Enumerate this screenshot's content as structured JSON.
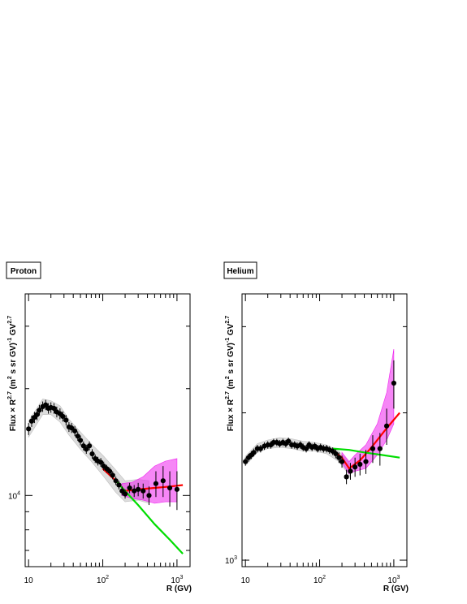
{
  "chart_data": [
    {
      "type": "scatter",
      "panel_label": "Proton",
      "ylabel": {
        "base": "Flux",
        "times": "×",
        "r": "R",
        "r_exp": "2.7",
        "mid": " (m",
        "m_exp": "2",
        "rest": " s sr GV)",
        "inv_exp": "-1",
        "gv": " GV",
        "gv_exp": "2.7"
      },
      "xlabel": "R (GV)",
      "xscale": "log",
      "yscale": "log",
      "xlim": [
        9,
        1500
      ],
      "ylim": [
        6300,
        37000
      ],
      "x_ticks": [
        {
          "base": "10",
          "exp": "",
          "value": 10
        },
        {
          "base": "10",
          "exp": "2",
          "value": 100
        },
        {
          "base": "10",
          "exp": "3",
          "value": 1000
        }
      ],
      "y_ticks": [
        {
          "base": "10",
          "exp": "4",
          "value": 10000
        }
      ],
      "series": [
        {
          "kind": "points",
          "x": [
            10,
            11,
            12,
            13,
            14,
            15.5,
            17,
            18.5,
            20,
            22,
            24,
            26.5,
            29,
            32,
            35,
            38,
            42,
            46,
            50,
            55,
            60,
            66,
            72,
            79,
            86,
            94,
            103,
            113,
            124,
            136,
            150,
            165,
            182,
            200,
            230,
            265,
            300,
            350,
            420,
            520,
            650,
            800,
            1000
          ],
          "y": [
            15400,
            16200,
            16600,
            16900,
            17400,
            17800,
            18000,
            17600,
            17700,
            17600,
            17200,
            17000,
            16700,
            16300,
            15600,
            15500,
            15200,
            14700,
            14300,
            13800,
            13500,
            13800,
            13100,
            12700,
            12500,
            12400,
            12100,
            11900,
            11700,
            11400,
            11000,
            10700,
            10300,
            10100,
            10500,
            10300,
            10400,
            10300,
            10000,
            10800,
            11000,
            10500,
            10400
          ],
          "err": [
            600,
            600,
            600,
            600,
            600,
            600,
            600,
            600,
            600,
            600,
            600,
            600,
            550,
            550,
            500,
            500,
            500,
            450,
            450,
            400,
            400,
            400,
            400,
            350,
            350,
            350,
            350,
            300,
            300,
            300,
            300,
            300,
            300,
            300,
            350,
            400,
            450,
            500,
            600,
            900,
            1100,
            1200,
            1300
          ]
        },
        {
          "kind": "fit",
          "color": "#ff0000",
          "x": [
            100,
            150,
            200,
            300,
            500,
            800,
            1200
          ],
          "y": [
            11900,
            11000,
            10300,
            10400,
            10500,
            10600,
            10700
          ]
        },
        {
          "kind": "fit",
          "color": "#00dd00",
          "x": [
            150,
            200,
            300,
            500,
            800,
            1200
          ],
          "y": [
            11000,
            10300,
            9400,
            8300,
            7500,
            6850
          ]
        }
      ],
      "bands": [
        {
          "color": "#bfbfbf",
          "x": [
            10,
            15.5,
            20,
            26.5,
            35,
            50,
            72,
            103,
            150,
            200,
            300,
            420
          ],
          "lo": [
            14600,
            16900,
            16900,
            16100,
            14800,
            13500,
            12400,
            11300,
            10200,
            9600,
            9700,
            9500
          ],
          "hi": [
            16200,
            18700,
            18500,
            17900,
            16400,
            15100,
            13900,
            12900,
            11800,
            11000,
            11100,
            11000
          ]
        },
        {
          "color": "#ee22ee",
          "x": [
            180,
            250,
            350,
            500,
            700,
            1000
          ],
          "lo": [
            10000,
            9800,
            9700,
            9500,
            9600,
            9600
          ],
          "hi": [
            10800,
            10900,
            11300,
            12100,
            12500,
            12700
          ]
        }
      ]
    },
    {
      "type": "scatter",
      "panel_label": "Helium",
      "ylabel": {
        "base": "Flux",
        "times": "×",
        "r": "R",
        "r_exp": "2.7",
        "mid": " (m",
        "m_exp": "2",
        "rest": " s sr GV)",
        "inv_exp": "-1",
        "gv": " GV",
        "gv_exp": "2.7"
      },
      "xlabel": "R (GV)",
      "xscale": "log",
      "yscale": "log",
      "xlim": [
        9,
        1500
      ],
      "ylim": [
        970,
        3500
      ],
      "x_ticks": [
        {
          "base": "10",
          "exp": "",
          "value": 10
        },
        {
          "base": "10",
          "exp": "2",
          "value": 100
        },
        {
          "base": "10",
          "exp": "3",
          "value": 1000
        }
      ],
      "y_ticks": [
        {
          "base": "10",
          "exp": "3",
          "value": 1000
        }
      ],
      "series": [
        {
          "kind": "points",
          "x": [
            10,
            11,
            12,
            13,
            14.5,
            16,
            18,
            20,
            22,
            24,
            26.5,
            29,
            32,
            35,
            38,
            42,
            46,
            50,
            55,
            60,
            66,
            72,
            79,
            86,
            94,
            103,
            113,
            124,
            136,
            150,
            165,
            182,
            200,
            230,
            260,
            300,
            350,
            420,
            520,
            650,
            800,
            1000
          ],
          "y": [
            1590,
            1620,
            1640,
            1660,
            1690,
            1690,
            1710,
            1720,
            1720,
            1740,
            1740,
            1730,
            1740,
            1730,
            1750,
            1720,
            1720,
            1710,
            1720,
            1700,
            1690,
            1720,
            1700,
            1710,
            1690,
            1700,
            1690,
            1690,
            1680,
            1670,
            1650,
            1620,
            1590,
            1480,
            1520,
            1550,
            1570,
            1590,
            1690,
            1690,
            1880,
            2300
          ],
          "err": [
            30,
            30,
            30,
            30,
            30,
            30,
            30,
            30,
            30,
            30,
            30,
            30,
            30,
            30,
            30,
            30,
            30,
            30,
            30,
            30,
            30,
            30,
            30,
            30,
            30,
            30,
            30,
            30,
            30,
            30,
            35,
            40,
            45,
            50,
            60,
            70,
            80,
            90,
            110,
            130,
            160,
            260
          ]
        },
        {
          "kind": "fit",
          "color": "#ff0000",
          "x": [
            100,
            150,
            200,
            250,
            350,
            500,
            800,
            1200
          ],
          "y": [
            1700,
            1680,
            1620,
            1540,
            1600,
            1700,
            1860,
            2000
          ]
        },
        {
          "kind": "fit",
          "color": "#00dd00",
          "x": [
            150,
            250,
            400,
            700,
            1200
          ],
          "y": [
            1690,
            1680,
            1660,
            1640,
            1620
          ]
        }
      ],
      "bands": [
        {
          "color": "#bfbfbf",
          "x": [
            10,
            14.5,
            20,
            29,
            42,
            60,
            86,
            124,
            182,
            260
          ],
          "lo": [
            1560,
            1660,
            1690,
            1700,
            1690,
            1670,
            1670,
            1650,
            1590,
            1480
          ],
          "hi": [
            1630,
            1730,
            1760,
            1780,
            1770,
            1750,
            1740,
            1720,
            1670,
            1570
          ]
        },
        {
          "color": "#ee22ee",
          "x": [
            200,
            250,
            300,
            420,
            600,
            800,
            1000
          ],
          "lo": [
            1580,
            1500,
            1520,
            1540,
            1640,
            1760,
            1900
          ],
          "hi": [
            1660,
            1590,
            1640,
            1720,
            1900,
            2200,
            2700
          ]
        }
      ]
    }
  ]
}
